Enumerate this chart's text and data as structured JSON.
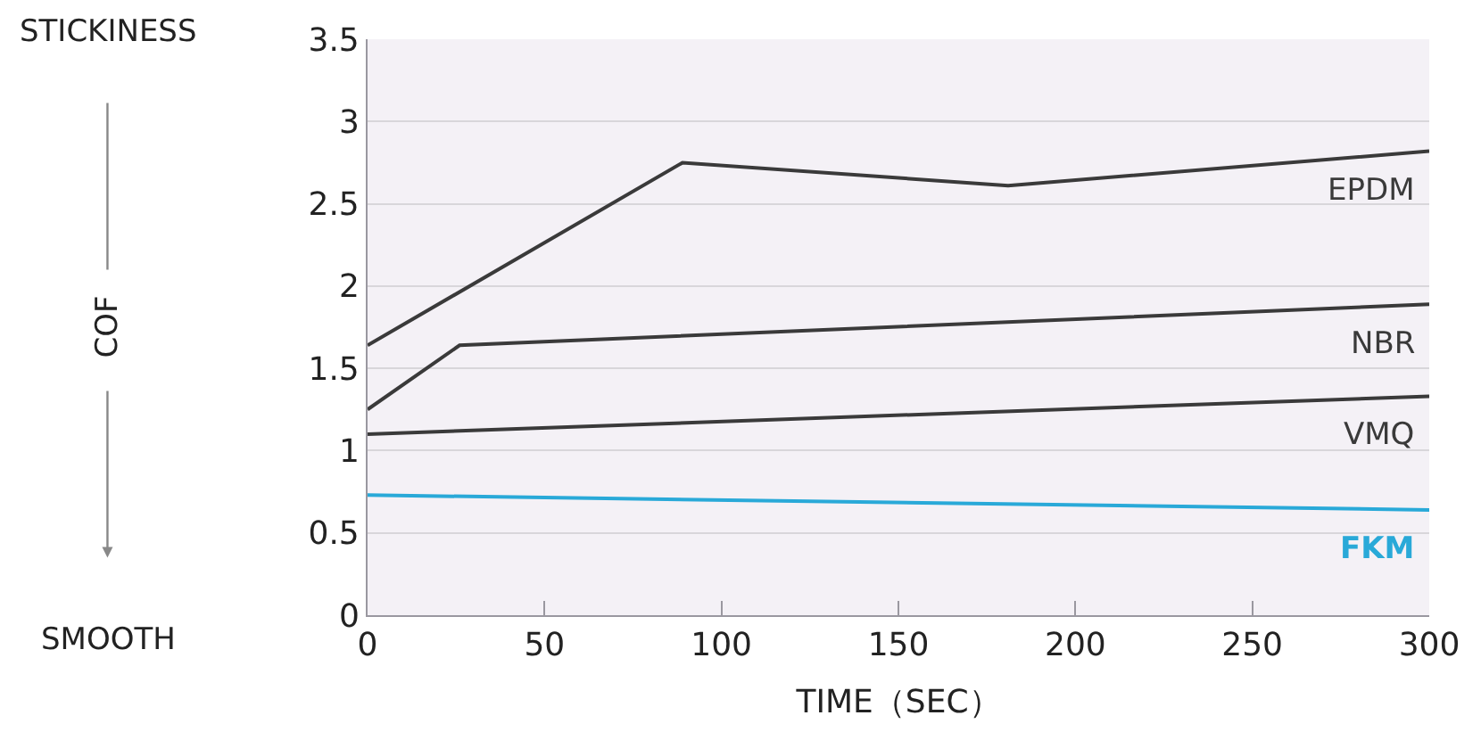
{
  "chart_data": {
    "type": "line",
    "xlabel": "TIME（SEC）",
    "annotations": [
      "STICKINESS",
      "COF",
      "SMOOTH"
    ],
    "xlim": [
      0,
      300
    ],
    "xticks": [
      0,
      50,
      100,
      150,
      200,
      250,
      300
    ],
    "ylim": [
      0,
      3.5
    ],
    "yticks": [
      0,
      0.5,
      1,
      1.5,
      2,
      2.5,
      3,
      3.5
    ],
    "grid": "y",
    "legend": false,
    "marker": "none",
    "line_style": "solid",
    "series": [
      {
        "name": "EPDM",
        "color": "#3a3a3a",
        "x": [
          0,
          89,
          181,
          300
        ],
        "values": [
          1.64,
          2.75,
          2.61,
          2.82
        ]
      },
      {
        "name": "NBR",
        "color": "#3a3a3a",
        "x": [
          0,
          26,
          300
        ],
        "values": [
          1.25,
          1.64,
          1.89
        ]
      },
      {
        "name": "VMQ",
        "color": "#3a3a3a",
        "x": [
          0,
          300
        ],
        "values": [
          1.1,
          1.33
        ]
      },
      {
        "name": "FKM",
        "color": "#29a9d8",
        "x": [
          0,
          300
        ],
        "values": [
          0.73,
          0.64
        ]
      }
    ]
  }
}
